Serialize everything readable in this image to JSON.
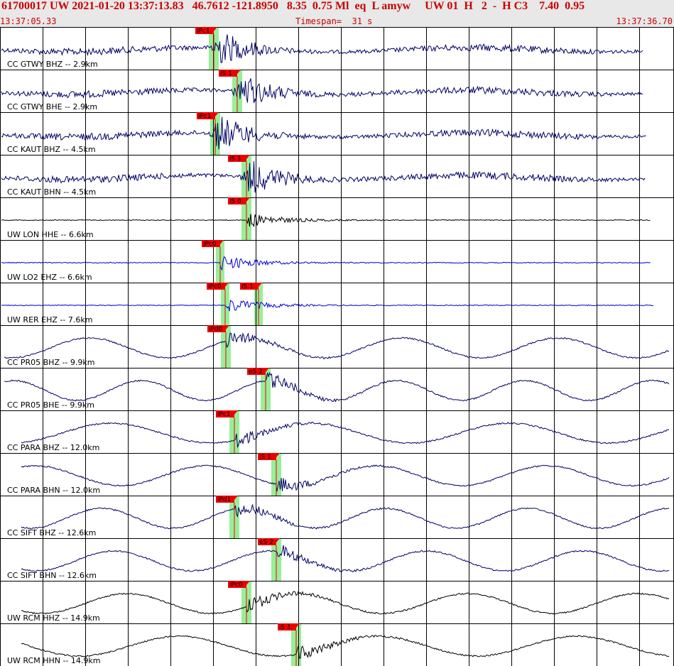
{
  "header": {
    "title": "61700017 UW 2021-01-20 13:37:13.83   46.7612 -121.8950   8.35  0.75 Ml  eq  L amyw     UW 01  H   2  -  H C3    7.40  0.95",
    "color": "#cc0000"
  },
  "subheader": {
    "start_time": "13:37:05.33",
    "timespan": "Timespan=  31 s",
    "end_time": "13:37:36.70",
    "color": "#cc0000"
  },
  "colors": {
    "pick_bar": "#99ee99",
    "pick_label_bg": "#ee0000",
    "pick_line": "#ee0000",
    "grid": "#000000"
  },
  "traces": [
    {
      "label": "CC GTWY BHZ -- 2.9km",
      "color": "#000066",
      "wave": "lp",
      "picks": [
        {
          "text": "iPc1"
        }
      ]
    },
    {
      "label": "CC GTWY BHE -- 2.9km",
      "color": "#000066",
      "wave": "lp",
      "picks": [
        {
          "text": "iS 1"
        }
      ]
    },
    {
      "label": "CC KAUT BHZ -- 4.5km",
      "color": "#000066",
      "wave": "lp",
      "picks": [
        {
          "text": "iPc1"
        }
      ]
    },
    {
      "label": "CC KAUT BHN -- 4.5km",
      "color": "#000066",
      "wave": "lp",
      "picks": [
        {
          "text": "iS 1"
        }
      ]
    },
    {
      "label": "UW LON HHE -- 6.6km",
      "color": "#000000",
      "wave": "flat",
      "picks": [
        {
          "text": "iS 0"
        }
      ]
    },
    {
      "label": "UW LO2 EHZ -- 6.6km",
      "color": "#0000dd",
      "wave": "flat",
      "picks": [
        {
          "text": "iPc0"
        }
      ]
    },
    {
      "label": "UW RER EHZ -- 7.6km",
      "color": "#0000dd",
      "wave": "flat",
      "picks": [
        {
          "text": "iPc0"
        },
        {
          "text": "iS 1"
        }
      ]
    },
    {
      "label": "CC PR05 BHZ -- 9.9km",
      "color": "#000066",
      "wave": "slow",
      "picks": [
        {
          "text": "iPd0"
        }
      ]
    },
    {
      "label": "CC PR05 BHE -- 9.9km",
      "color": "#000066",
      "wave": "slow",
      "picks": [
        {
          "text": "eS 2"
        }
      ]
    },
    {
      "label": "CC PARA BHZ -- 12.0km",
      "color": "#000066",
      "wave": "slow",
      "picks": [
        {
          "text": "iPc1"
        }
      ]
    },
    {
      "label": "CC PARA BHN -- 12.0km",
      "color": "#000066",
      "wave": "slow",
      "picks": [
        {
          "text": "iS 1"
        }
      ]
    },
    {
      "label": "CC SIFT BHZ -- 12.6km",
      "color": "#000066",
      "wave": "slow",
      "picks": [
        {
          "text": "iPd1"
        }
      ]
    },
    {
      "label": "CC SIFT BHN -- 12.6km",
      "color": "#000066",
      "wave": "slow",
      "picks": [
        {
          "text": "eS 2"
        }
      ]
    },
    {
      "label": "UW RCM HHZ -- 14.9km",
      "color": "#000000",
      "wave": "slow",
      "picks": [
        {
          "text": "iPc0"
        }
      ]
    },
    {
      "label": "UW RCM HHN -- 14.9km",
      "color": "#000000",
      "wave": "slow",
      "picks": [
        {
          "text": "iS 1"
        }
      ]
    }
  ]
}
